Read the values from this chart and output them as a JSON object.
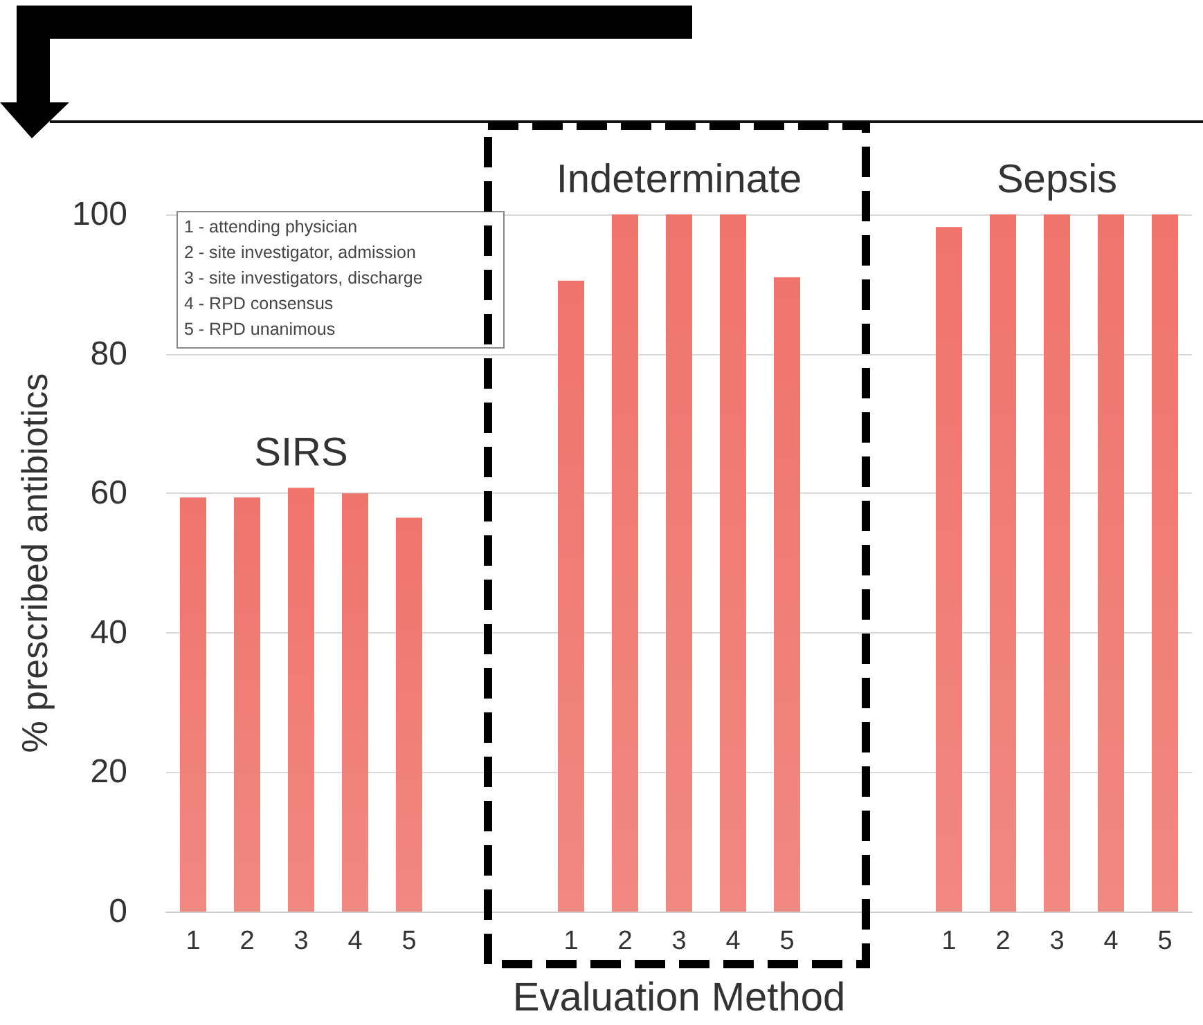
{
  "chart_data": {
    "type": "bar",
    "xlabel": "Evaluation Method",
    "ylabel": "% prescribed antibiotics",
    "categories": [
      "1",
      "2",
      "3",
      "4",
      "5",
      null,
      null,
      "1",
      "2",
      "3",
      "4",
      "5",
      null,
      null,
      "1",
      "2",
      "3",
      "4",
      "5"
    ],
    "values": [
      59.4,
      59.4,
      60.8,
      60,
      56.5,
      null,
      null,
      90.5,
      100,
      100,
      100,
      91,
      null,
      null,
      98.2,
      100,
      100,
      100,
      100
    ],
    "color": "#ef746c",
    "ylim": [
      0,
      100
    ],
    "yticks": [
      0,
      20,
      40,
      60,
      80,
      100
    ],
    "grid": "y",
    "annotations": [
      "1 - attending physician",
      "2 - site investigator, admission",
      "3 - site investigators, discharge",
      "4 - RPD consensus",
      "5 - RPD unanimous",
      "SIRS",
      "Indeterminate",
      "Sepsis"
    ]
  }
}
